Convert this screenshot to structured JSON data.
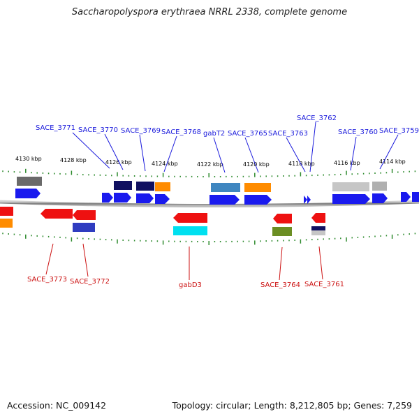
{
  "title": "Saccharopolyspora erythraea NRRL 2338, complete genome",
  "footer": {
    "accession": "Accession: NC_009142",
    "summary": "Topology: circular; Length: 8,212,805 bp; Genes: 7,259"
  },
  "ticks": [
    "4130 kbp",
    "4128 kbp",
    "4126 kbp",
    "4124 kbp",
    "4122 kbp",
    "4120 kbp",
    "4118 kbp",
    "4116 kbp",
    "4114 kbp"
  ],
  "top_labels": [
    "SACE_3771",
    "SACE_3770",
    "SACE_3769",
    "SACE_3768",
    "gabT2",
    "SACE_3765",
    "SACE_3763",
    "SACE_3762",
    "SACE_3760",
    "SACE_3759"
  ],
  "bottom_labels": [
    "SACE_3773",
    "SACE_3772",
    "gabD3",
    "SACE_3764",
    "SACE_3761"
  ],
  "colors": {
    "forward_label": "#1a1adc",
    "reverse_label": "#cc1111",
    "cds_forward": "#1a1aee",
    "cds_reverse": "#ee1111",
    "backbone": "#888888",
    "tick": "#2e8b2e"
  }
}
